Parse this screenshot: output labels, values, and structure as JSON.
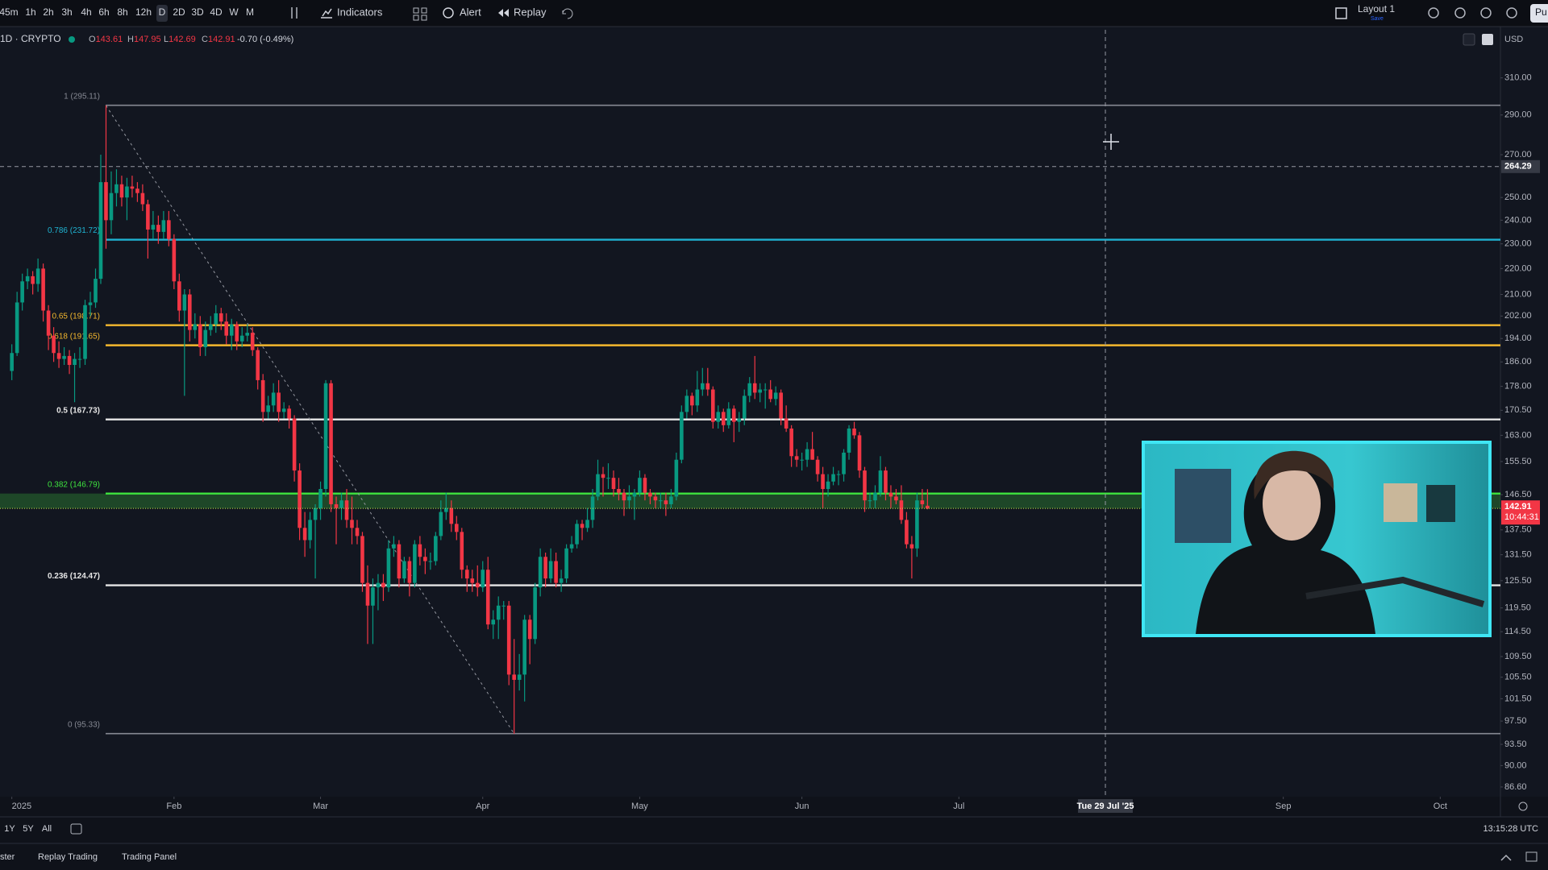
{
  "toolbar": {
    "intervals": [
      "45m",
      "1h",
      "2h",
      "3h",
      "4h",
      "6h",
      "8h",
      "12h",
      "D",
      "2D",
      "3D",
      "4D",
      "W",
      "M"
    ],
    "indicators": "Indicators",
    "alert": "Alert",
    "replay": "Replay",
    "layout": "Layout 1",
    "save": "Save",
    "publish": "Pu"
  },
  "legend": {
    "symbol": "1D · CRYPTO",
    "o": "O",
    "h": "H",
    "l": "L",
    "c": "C",
    "change": "-0.70 (-0.49%)"
  },
  "chart_data": {
    "type": "candlestick",
    "up_color": "#089981",
    "down_color": "#f23645",
    "log_scale": true,
    "grid": false,
    "currency": "USD",
    "candles": [
      [
        183,
        192,
        180,
        189
      ],
      [
        189,
        211,
        188,
        207
      ],
      [
        207,
        218,
        204,
        215
      ],
      [
        215,
        220,
        212,
        217
      ],
      [
        217,
        219,
        210,
        214
      ],
      [
        214,
        224,
        211,
        220
      ],
      [
        220,
        222,
        200,
        204
      ],
      [
        204,
        206,
        190,
        195
      ],
      [
        195,
        198,
        186,
        189
      ],
      [
        189,
        193,
        184,
        187
      ],
      [
        187,
        191,
        185,
        188
      ],
      [
        188,
        190,
        182,
        185
      ],
      [
        185,
        189,
        173,
        187
      ],
      [
        187,
        191,
        184,
        187
      ],
      [
        187,
        208,
        185,
        206
      ],
      [
        206,
        211,
        202,
        207
      ],
      [
        207,
        220,
        205,
        216
      ],
      [
        216,
        270,
        214,
        257
      ],
      [
        257,
        295,
        228,
        240
      ],
      [
        240,
        262,
        234,
        252
      ],
      [
        252,
        263,
        246,
        256
      ],
      [
        256,
        260,
        246,
        250
      ],
      [
        250,
        259,
        240,
        255
      ],
      [
        255,
        260,
        250,
        254
      ],
      [
        254,
        257,
        248,
        252
      ],
      [
        252,
        256,
        244,
        247
      ],
      [
        247,
        249,
        224,
        236
      ],
      [
        236,
        244,
        232,
        238
      ],
      [
        238,
        242,
        230,
        235
      ],
      [
        235,
        244,
        232,
        240
      ],
      [
        240,
        244,
        229,
        232
      ],
      [
        232,
        234,
        212,
        215
      ],
      [
        215,
        218,
        200,
        204
      ],
      [
        204,
        212,
        175,
        210
      ],
      [
        210,
        212,
        193,
        197
      ],
      [
        197,
        203,
        194,
        199
      ],
      [
        199,
        202,
        188,
        191
      ],
      [
        191,
        200,
        188,
        197
      ],
      [
        197,
        202,
        195,
        199
      ],
      [
        199,
        206,
        196,
        203
      ],
      [
        203,
        205,
        197,
        200
      ],
      [
        200,
        203,
        192,
        195
      ],
      [
        195,
        201,
        190,
        199
      ],
      [
        199,
        200,
        190,
        193
      ],
      [
        193,
        198,
        191,
        195
      ],
      [
        195,
        199,
        193,
        196
      ],
      [
        196,
        198,
        188,
        190
      ],
      [
        190,
        191,
        177,
        180
      ],
      [
        180,
        182,
        167,
        170
      ],
      [
        170,
        175,
        168,
        172
      ],
      [
        172,
        179,
        170,
        176
      ],
      [
        176,
        180,
        167,
        170
      ],
      [
        170,
        173,
        168,
        171
      ],
      [
        171,
        172,
        165,
        168
      ],
      [
        168,
        169,
        150,
        153
      ],
      [
        153,
        155,
        135,
        138
      ],
      [
        138,
        142,
        131,
        135
      ],
      [
        135,
        142,
        133,
        140
      ],
      [
        140,
        144,
        126,
        143
      ],
      [
        143,
        150,
        140,
        148
      ],
      [
        148,
        180,
        146,
        179
      ],
      [
        179,
        180,
        142,
        144
      ],
      [
        144,
        146,
        134,
        143
      ],
      [
        143,
        147,
        140,
        145
      ],
      [
        145,
        148,
        138,
        140
      ],
      [
        140,
        146,
        134,
        138
      ],
      [
        138,
        140,
        134,
        136
      ],
      [
        136,
        137,
        123,
        125
      ],
      [
        125,
        129,
        112,
        120
      ],
      [
        120,
        126,
        112,
        124
      ],
      [
        124,
        127,
        119,
        125
      ],
      [
        125,
        127,
        121,
        124
      ],
      [
        124,
        135,
        123,
        133
      ],
      [
        133,
        136,
        131,
        134
      ],
      [
        134,
        135,
        124,
        126
      ],
      [
        126,
        131,
        125,
        130
      ],
      [
        130,
        131,
        122,
        125
      ],
      [
        125,
        135,
        124,
        134
      ],
      [
        134,
        136,
        129,
        131
      ],
      [
        131,
        133,
        127,
        130
      ],
      [
        130,
        132,
        128,
        130
      ],
      [
        130,
        137,
        129,
        136
      ],
      [
        136,
        145,
        135,
        142
      ],
      [
        142,
        147,
        140,
        143
      ],
      [
        143,
        145,
        137,
        139
      ],
      [
        139,
        141,
        135,
        137
      ],
      [
        137,
        138,
        126,
        128
      ],
      [
        128,
        129,
        123,
        126
      ],
      [
        126,
        128,
        123,
        125
      ],
      [
        125,
        129,
        122,
        124
      ],
      [
        124,
        130,
        123,
        128
      ],
      [
        128,
        131,
        115,
        116
      ],
      [
        116,
        119,
        113,
        117
      ],
      [
        117,
        122,
        113,
        120
      ],
      [
        120,
        121,
        117,
        120
      ],
      [
        120,
        121,
        104,
        106
      ],
      [
        106,
        113,
        95.3,
        105
      ],
      [
        105,
        110,
        103,
        106
      ],
      [
        106,
        118,
        101,
        117
      ],
      [
        117,
        118,
        108,
        113
      ],
      [
        113,
        125,
        112,
        124
      ],
      [
        124,
        133,
        122,
        131
      ],
      [
        131,
        132,
        124,
        126
      ],
      [
        126,
        133,
        125,
        130
      ],
      [
        130,
        132,
        124,
        125
      ],
      [
        125,
        128,
        123,
        126
      ],
      [
        126,
        134,
        125,
        133
      ],
      [
        133,
        136,
        132,
        134
      ],
      [
        134,
        140,
        133,
        139
      ],
      [
        139,
        140,
        135,
        138
      ],
      [
        138,
        143,
        137,
        140
      ],
      [
        140,
        148,
        138,
        146
      ],
      [
        146,
        156,
        145,
        152
      ],
      [
        152,
        154,
        146,
        151
      ],
      [
        151,
        155,
        148,
        151
      ],
      [
        151,
        153,
        146,
        148
      ],
      [
        148,
        151,
        145,
        147
      ],
      [
        147,
        148,
        141,
        145
      ],
      [
        145,
        149,
        143,
        146
      ],
      [
        146,
        148,
        140,
        147
      ],
      [
        147,
        153,
        146,
        151
      ],
      [
        151,
        152,
        145,
        147
      ],
      [
        147,
        148,
        144,
        146
      ],
      [
        146,
        147,
        143,
        145
      ],
      [
        145,
        147,
        143,
        145
      ],
      [
        145,
        147,
        141,
        144
      ],
      [
        144,
        148,
        143,
        146
      ],
      [
        146,
        158,
        145,
        156
      ],
      [
        156,
        172,
        155,
        170
      ],
      [
        170,
        177,
        168,
        175
      ],
      [
        175,
        176,
        169,
        172
      ],
      [
        172,
        183,
        170,
        177
      ],
      [
        177,
        184,
        175,
        179
      ],
      [
        179,
        184,
        175,
        177
      ],
      [
        177,
        178,
        165,
        167
      ],
      [
        167,
        172,
        165,
        170
      ],
      [
        170,
        171,
        164,
        166
      ],
      [
        166,
        173,
        165,
        171
      ],
      [
        171,
        172,
        161,
        167
      ],
      [
        167,
        170,
        164,
        168
      ],
      [
        168,
        177,
        166,
        175
      ],
      [
        175,
        181,
        173,
        179
      ],
      [
        179,
        188,
        174,
        176
      ],
      [
        176,
        179,
        173,
        177
      ],
      [
        177,
        179,
        171,
        177
      ],
      [
        177,
        180,
        173,
        174
      ],
      [
        174,
        178,
        172,
        176
      ],
      [
        176,
        177,
        166,
        168
      ],
      [
        168,
        172,
        164,
        165
      ],
      [
        165,
        166,
        154,
        157
      ],
      [
        157,
        159,
        154,
        156
      ],
      [
        156,
        158,
        153,
        156
      ],
      [
        156,
        161,
        154,
        159
      ],
      [
        159,
        164,
        156,
        156
      ],
      [
        156,
        157,
        150,
        152
      ],
      [
        152,
        154,
        143,
        148
      ],
      [
        148,
        152,
        146,
        150
      ],
      [
        150,
        154,
        149,
        152
      ],
      [
        152,
        153,
        149,
        152
      ],
      [
        152,
        159,
        150,
        158
      ],
      [
        158,
        166,
        156,
        165
      ],
      [
        165,
        167,
        162,
        163
      ],
      [
        163,
        164,
        151,
        153
      ],
      [
        153,
        154,
        142,
        145
      ],
      [
        145,
        147,
        143,
        145
      ],
      [
        145,
        149,
        143,
        147
      ],
      [
        147,
        157,
        146,
        153
      ],
      [
        153,
        154,
        145,
        147
      ],
      [
        147,
        149,
        143,
        146
      ],
      [
        146,
        148,
        144,
        145
      ],
      [
        145,
        149,
        139,
        140
      ],
      [
        140,
        142,
        133,
        134
      ],
      [
        134,
        136,
        126,
        133
      ],
      [
        133,
        147,
        131,
        145
      ],
      [
        145,
        148,
        143,
        144
      ],
      [
        143.61,
        147.95,
        142.69,
        142.91
      ]
    ],
    "xlim": [
      -2.26,
      284.5
    ],
    "xticks": [
      {
        "value": 0,
        "label": "2025"
      },
      {
        "value": 31,
        "label": "Feb"
      },
      {
        "value": 59,
        "label": "Mar"
      },
      {
        "value": 90,
        "label": "Apr"
      },
      {
        "value": 120,
        "label": "May"
      },
      {
        "value": 151,
        "label": "Jun"
      },
      {
        "value": 181,
        "label": "Jul"
      },
      {
        "value": 243,
        "label": "Sep"
      },
      {
        "value": 273,
        "label": "Oct"
      }
    ],
    "ylim": [
      85.1,
      338
    ],
    "yticks": [
      {
        "value": 310,
        "label": "310.00"
      },
      {
        "value": 290,
        "label": "290.00"
      },
      {
        "value": 270,
        "label": "270.00"
      },
      {
        "value": 250,
        "label": "250.00"
      },
      {
        "value": 240,
        "label": "240.00"
      },
      {
        "value": 230,
        "label": "230.00"
      },
      {
        "value": 220,
        "label": "220.00"
      },
      {
        "value": 210,
        "label": "210.00"
      },
      {
        "value": 202,
        "label": "202.00"
      },
      {
        "value": 194,
        "label": "194.00"
      },
      {
        "value": 186,
        "label": "186.00"
      },
      {
        "value": 178,
        "label": "178.00"
      },
      {
        "value": 170.5,
        "label": "170.50"
      },
      {
        "value": 163,
        "label": "163.00"
      },
      {
        "value": 155.5,
        "label": "155.50"
      },
      {
        "value": 146.5,
        "label": "146.50"
      },
      {
        "value": 137.5,
        "label": "137.50"
      },
      {
        "value": 131.5,
        "label": "131.50"
      },
      {
        "value": 125.5,
        "label": "125.50"
      },
      {
        "value": 119.5,
        "label": "119.50"
      },
      {
        "value": 114.5,
        "label": "114.50"
      },
      {
        "value": 109.5,
        "label": "109.50"
      },
      {
        "value": 105.5,
        "label": "105.50"
      },
      {
        "value": 101.5,
        "label": "101.50"
      },
      {
        "value": 97.5,
        "label": "97.50"
      },
      {
        "value": 93.5,
        "label": "93.50"
      },
      {
        "value": 90,
        "label": "90.00"
      },
      {
        "value": 86.6,
        "label": "86.60"
      }
    ],
    "fib_levels": [
      {
        "label": "1 (295.11)",
        "value": 295.11,
        "color": "#868993"
      },
      {
        "label": "0.786 (231.72)",
        "value": 231.72,
        "color": "#1fb4d2"
      },
      {
        "label": "0.65 (198.71)",
        "value": 198.71,
        "color": "#f5b82e"
      },
      {
        "label": "0.618 (191.65)",
        "value": 191.65,
        "color": "#f5b82e"
      },
      {
        "label": "0.5 (167.73)",
        "value": 167.73,
        "color": "#e6e6e6"
      },
      {
        "label": "0.382 (146.79)",
        "value": 146.79,
        "color": "#3ee43e"
      },
      {
        "label": "0.236 (124.47)",
        "value": 124.47,
        "color": "#e6e6e6"
      },
      {
        "label": "0 (95.33)",
        "value": 95.33,
        "color": "#868993"
      }
    ],
    "crosshair": {
      "x": 209,
      "x_label": "Tue 29 Jul '25",
      "price": 264.29
    },
    "countdown": "10:44:31"
  },
  "range_bar": {
    "ranges": [
      "1Y",
      "5Y",
      "All"
    ],
    "clock": "13:15:28 UTC"
  },
  "bottom_tabs": [
    "ster",
    "Replay Trading",
    "Trading Panel"
  ]
}
